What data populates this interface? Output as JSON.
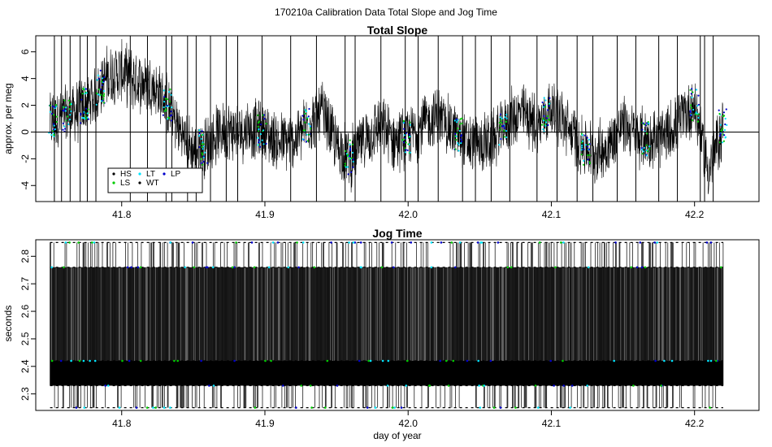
{
  "suptitle": "170210a   Calibration Data Total Slope and Jog Time",
  "xlabel": "day of year",
  "colors": {
    "HS": "#000000",
    "LS": "#00cc00",
    "LT": "#00e5ff",
    "WT": "#000000",
    "LP": "#0000cc",
    "background": "#ffffff",
    "trace": "#000000"
  },
  "chart_data": [
    {
      "type": "line",
      "title": "Total Slope",
      "xlabel": "",
      "ylabel": "approx. per meg",
      "xlim": [
        41.74,
        42.245
      ],
      "ylim": [
        -5.2,
        7.2
      ],
      "xticks": [
        "41.8",
        "41.9",
        "42.0",
        "42.1",
        "42.2"
      ],
      "yticks": [
        "-4",
        "-2",
        "0",
        "2",
        "4",
        "6"
      ],
      "hline": 0,
      "grid": false,
      "legend": {
        "placement": "bottom-left",
        "entries": [
          "HS",
          "LS",
          "LT",
          "WT",
          "LP"
        ]
      },
      "series": [
        {
          "name": "",
          "x": [
            41.75,
            41.76,
            41.77,
            41.78,
            41.79,
            41.8,
            41.81,
            41.82,
            41.83,
            41.84,
            41.85,
            41.86,
            41.87,
            41.88,
            41.89,
            41.9,
            41.91,
            41.92,
            41.93,
            41.94,
            41.95,
            41.96,
            41.97,
            41.98,
            41.99,
            42.0,
            42.01,
            42.02,
            42.03,
            42.04,
            42.05,
            42.06,
            42.07,
            42.08,
            42.09,
            42.1,
            42.11,
            42.12,
            42.13,
            42.14,
            42.15,
            42.16,
            42.17,
            42.18,
            42.19,
            42.2,
            42.21,
            42.22
          ],
          "y": [
            0.8,
            1.2,
            1.6,
            2.5,
            4.2,
            4.5,
            3.8,
            3.6,
            2.4,
            0.2,
            -1.5,
            -1.0,
            0.2,
            0.0,
            0.3,
            0.0,
            -0.8,
            -0.7,
            0.6,
            1.5,
            -1.0,
            -2.0,
            -0.5,
            0.4,
            -0.6,
            -0.4,
            0.5,
            1.2,
            0.3,
            -0.8,
            -1.0,
            -0.5,
            0.9,
            1.4,
            0.5,
            1.8,
            0.5,
            -0.9,
            -1.6,
            -1.0,
            0.6,
            -0.3,
            -0.6,
            -0.4,
            1.0,
            2.0,
            -3.0,
            0.5
          ]
        }
      ]
    },
    {
      "type": "line",
      "title": "Jog Time",
      "xlabel": "day of year",
      "ylabel": "seconds",
      "xlim": [
        41.74,
        42.245
      ],
      "ylim": [
        2.24,
        2.86
      ],
      "xticks": [
        "41.8",
        "41.9",
        "42.0",
        "42.1",
        "42.2"
      ],
      "yticks": [
        "2.3",
        "2.4",
        "2.5",
        "2.6",
        "2.7",
        "2.8"
      ],
      "grid": false,
      "levels": [
        2.25,
        2.33,
        2.42,
        2.76,
        2.85
      ],
      "series": [
        {
          "name": "",
          "x": [
            41.75,
            41.8,
            41.85,
            41.9,
            41.95,
            42.0,
            42.05,
            42.1,
            42.15,
            42.2,
            42.22
          ],
          "y": [
            2.38,
            2.38,
            2.38,
            2.38,
            2.38,
            2.38,
            2.38,
            2.38,
            2.38,
            2.38,
            2.38
          ]
        }
      ]
    }
  ]
}
